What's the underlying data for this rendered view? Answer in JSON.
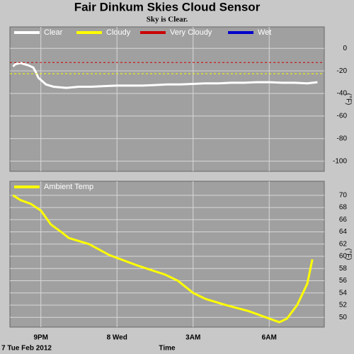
{
  "title": "Fair Dinkum Skies Cloud Sensor",
  "subtitle": "Sky is Clear.",
  "chart_data": [
    {
      "type": "line",
      "ylabel": "(°F)",
      "xlim": [
        19.78,
        32.17
      ],
      "xticks": [
        21,
        24,
        27,
        30
      ],
      "ylim": [
        -109,
        19
      ],
      "yticks": [
        0,
        -20,
        -40,
        -60,
        -80,
        -100
      ],
      "grid": true,
      "x": [
        19.9,
        20.0,
        20.2,
        20.5,
        20.7,
        20.8,
        20.9,
        21.0,
        21.2,
        21.5,
        22,
        22.5,
        23,
        23.5,
        24,
        24.5,
        25,
        25.5,
        26,
        26.5,
        27,
        27.5,
        28,
        28.5,
        29,
        29.5,
        30,
        30.5,
        31,
        31.5,
        31.9
      ],
      "series": [
        {
          "name": "Clear",
          "color": "#ffffff",
          "values": [
            -16,
            -14,
            -13,
            -15,
            -17,
            -21,
            -26,
            -28,
            -32,
            -34,
            -35,
            -34,
            -34,
            -33.5,
            -33,
            -33,
            -33,
            -32.5,
            -32,
            -32,
            -31.5,
            -31,
            -31,
            -30.5,
            -30.5,
            -30,
            -30,
            -30.5,
            -30.5,
            -31,
            -30
          ]
        },
        {
          "name": "Cloudy",
          "color": "#ffff00",
          "threshold": -22.5
        },
        {
          "name": "Very Cloudy",
          "color": "#cc0000",
          "threshold": -12.5
        },
        {
          "name": "Wet",
          "color": "#0000cc"
        }
      ]
    },
    {
      "type": "line",
      "ylabel": "(°F)",
      "xlabel": "Time",
      "x_note": "7 Tue Feb 2012",
      "xlim": [
        19.78,
        32.17
      ],
      "xticks": [
        {
          "value": 21,
          "label": "9PM"
        },
        {
          "value": 24,
          "label": "8 Wed"
        },
        {
          "value": 27,
          "label": "3AM"
        },
        {
          "value": 30,
          "label": "6AM"
        }
      ],
      "ylim": [
        48.4,
        72.3
      ],
      "yticks": [
        50,
        52,
        54,
        56,
        58,
        60,
        62,
        64,
        66,
        68,
        70
      ],
      "grid": true,
      "x": [
        19.9,
        20.2,
        20.6,
        21,
        21.4,
        21.8,
        22.1,
        22.9,
        23.7,
        24.8,
        25.9,
        26.4,
        27,
        27.5,
        28.3,
        29.2,
        30,
        30.4,
        30.7,
        31.1,
        31.5,
        31.7
      ],
      "series": [
        {
          "name": "Ambient Temp",
          "color": "#ffff00",
          "values": [
            70,
            69.2,
            68.6,
            67.5,
            65.2,
            64,
            63,
            62,
            60.2,
            58.5,
            57,
            56,
            54,
            53,
            52,
            51,
            49.8,
            49.2,
            49.8,
            52,
            55.5,
            59.5
          ]
        }
      ]
    }
  ]
}
